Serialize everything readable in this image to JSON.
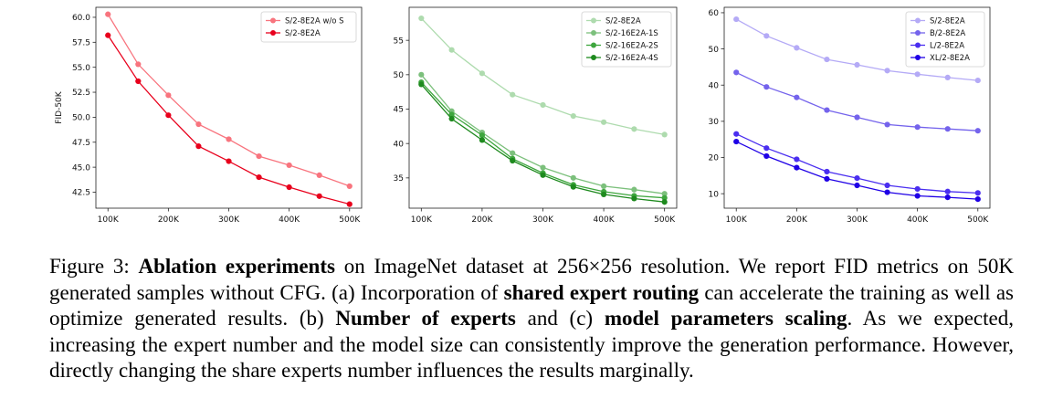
{
  "chart_data": [
    {
      "type": "line",
      "ylabel": "FID-50K",
      "x": [
        100000,
        150000,
        200000,
        250000,
        300000,
        350000,
        400000,
        450000,
        500000
      ],
      "xticks": [
        "100K",
        "200K",
        "300K",
        "400K",
        "500K"
      ],
      "xtick_values": [
        100000,
        200000,
        300000,
        400000,
        500000
      ],
      "yticks": [
        "60.0",
        "57.5",
        "55.0",
        "52.5",
        "50.0",
        "47.5",
        "45.0",
        "42.5"
      ],
      "ytick_values": [
        60.0,
        57.5,
        55.0,
        52.5,
        50.0,
        47.5,
        45.0,
        42.5
      ],
      "ylim": [
        40.9,
        61.0
      ],
      "xlim": [
        80000,
        520000
      ],
      "legend_loc": "upper right",
      "series": [
        {
          "name": "S/2-8E2A w/o S",
          "color": "#f8747e",
          "values": [
            60.3,
            55.3,
            52.2,
            49.3,
            47.8,
            46.1,
            45.2,
            44.2,
            43.1
          ]
        },
        {
          "name": "S/2-8E2A",
          "color": "#e8001c",
          "values": [
            58.2,
            53.6,
            50.2,
            47.1,
            45.6,
            44.0,
            43.0,
            42.1,
            41.3
          ]
        }
      ]
    },
    {
      "type": "line",
      "ylabel": "",
      "x": [
        100000,
        150000,
        200000,
        250000,
        300000,
        350000,
        400000,
        450000,
        500000
      ],
      "xticks": [
        "100K",
        "200K",
        "300K",
        "400K",
        "500K"
      ],
      "xtick_values": [
        100000,
        200000,
        300000,
        400000,
        500000
      ],
      "yticks": [
        "55",
        "50",
        "45",
        "40",
        "35"
      ],
      "ytick_values": [
        55,
        50,
        45,
        40,
        35
      ],
      "ylim": [
        30.6,
        59.8
      ],
      "xlim": [
        80000,
        520000
      ],
      "legend_loc": "upper right",
      "series": [
        {
          "name": "S/2-8E2A",
          "color": "#aedbae",
          "values": [
            58.2,
            53.6,
            50.2,
            47.1,
            45.6,
            44.0,
            43.1,
            42.1,
            41.3
          ]
        },
        {
          "name": "S/2-16E2A-1S",
          "color": "#7cc07c",
          "values": [
            50.0,
            44.7,
            41.6,
            38.6,
            36.5,
            35.0,
            33.8,
            33.3,
            32.7
          ]
        },
        {
          "name": "S/2-16E2A-2S",
          "color": "#3ea63e",
          "values": [
            48.9,
            44.2,
            41.2,
            37.8,
            35.7,
            34.0,
            33.0,
            32.4,
            32.1
          ]
        },
        {
          "name": "S/2-16E2A-4S",
          "color": "#1e8a1e",
          "values": [
            48.6,
            43.6,
            40.5,
            37.5,
            35.4,
            33.7,
            32.6,
            32.0,
            31.5
          ]
        }
      ]
    },
    {
      "type": "line",
      "ylabel": "",
      "x": [
        100000,
        150000,
        200000,
        250000,
        300000,
        350000,
        400000,
        450000,
        500000
      ],
      "xticks": [
        "100K",
        "200K",
        "300K",
        "400K",
        "500K"
      ],
      "xtick_values": [
        100000,
        200000,
        300000,
        400000,
        500000
      ],
      "yticks": [
        "60",
        "50",
        "40",
        "30",
        "20",
        "10"
      ],
      "ytick_values": [
        60,
        50,
        40,
        30,
        20,
        10
      ],
      "ylim": [
        6.0,
        61.5
      ],
      "xlim": [
        80000,
        520000
      ],
      "legend_loc": "upper right",
      "series": [
        {
          "name": "S/2-8E2A",
          "color": "#b4aaf6",
          "values": [
            58.2,
            53.6,
            50.3,
            47.1,
            45.6,
            44.0,
            43.0,
            42.1,
            41.3
          ]
        },
        {
          "name": "B/2-8E2A",
          "color": "#7463ec",
          "values": [
            43.5,
            39.5,
            36.6,
            33.1,
            31.1,
            29.1,
            28.4,
            27.9,
            27.4
          ]
        },
        {
          "name": "L/2-8E2A",
          "color": "#4a2ef0",
          "values": [
            26.5,
            22.6,
            19.5,
            16.1,
            14.3,
            12.3,
            11.3,
            10.6,
            10.2
          ]
        },
        {
          "name": "XL/2-8E2A",
          "color": "#1f00e6",
          "values": [
            24.4,
            20.4,
            17.2,
            14.1,
            12.3,
            10.4,
            9.4,
            9.0,
            8.5
          ]
        }
      ]
    }
  ],
  "caption": {
    "p1": "Figure 3: ",
    "b1": "Ablation experiments",
    "p2": " on ImageNet dataset at 256×256 resolution. We report FID metrics on 50K generated samples without CFG. (a) Incorporation of ",
    "b2": "shared expert routing",
    "p3": " can accelerate the training as well as optimize generated results. (b) ",
    "b3": "Number of experts",
    "p4": " and (c) ",
    "b4": "model parameters scaling",
    "p5": ". As we expected, increasing the expert number and the model size can consistently improve the generation performance. However, directly changing the share experts number influences the results marginally."
  }
}
